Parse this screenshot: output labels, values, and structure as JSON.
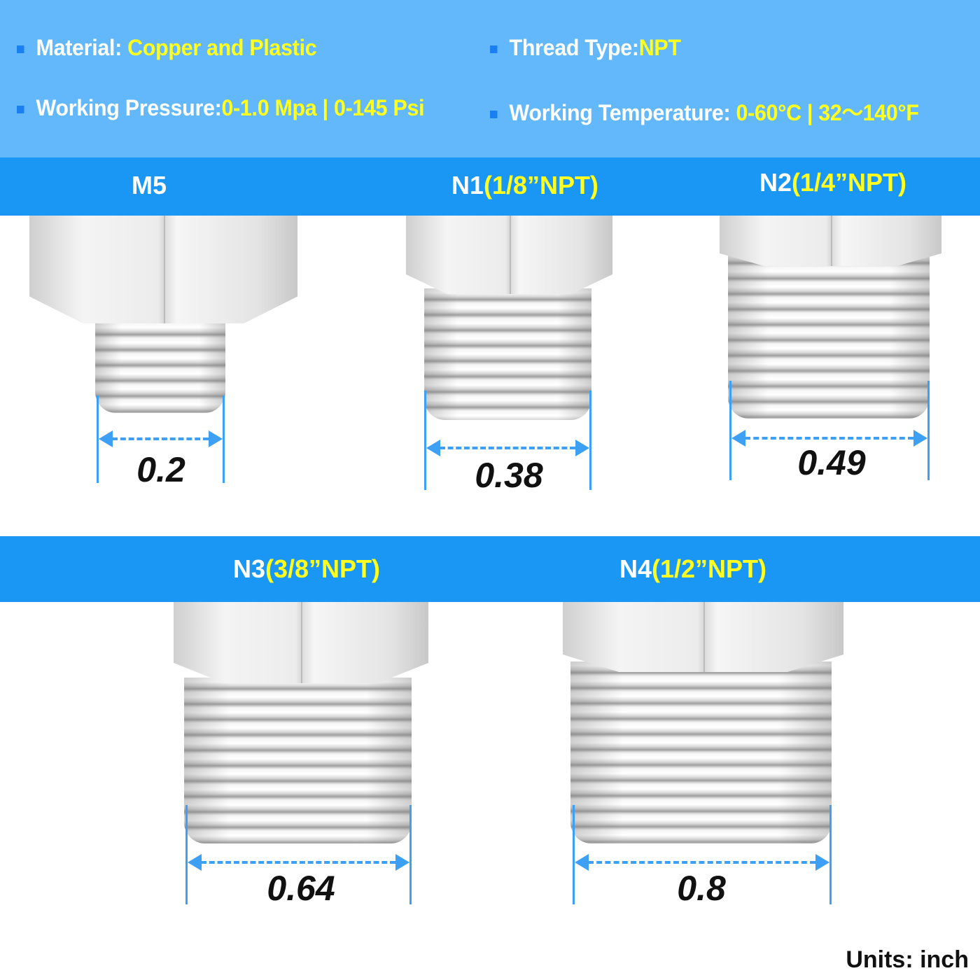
{
  "specs": [
    {
      "label": "Material: ",
      "value": "Copper and Plastic"
    },
    {
      "label": "Thread Type:",
      "value": "NPT"
    },
    {
      "label": "Working Pressure:",
      "value": "0-1.0 Mpa | 0-145 Psi"
    },
    {
      "label": "Working Temperature: ",
      "value": "0-60°C | 32～140°F"
    }
  ],
  "fittings": [
    {
      "code": "M5",
      "size": "",
      "dimension": "0.2"
    },
    {
      "code": "N1",
      "size": "(1/8”NPT)",
      "dimension": "0.38"
    },
    {
      "code": "N2",
      "size": "(1/4”NPT)",
      "dimension": "0.49"
    },
    {
      "code": "N3",
      "size": "(3/8”NPT)",
      "dimension": "0.64"
    },
    {
      "code": "N4",
      "size": "(1/2”NPT)",
      "dimension": "0.8"
    }
  ],
  "units": "Units: inch",
  "colors": {
    "header": "#62b8fb",
    "band": "#1a96f5",
    "highlight": "#ffff20",
    "dimension_line": "#3da0f5"
  }
}
